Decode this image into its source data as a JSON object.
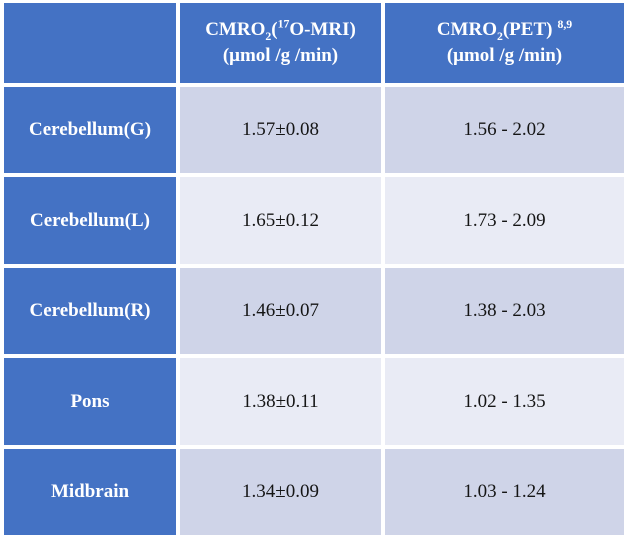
{
  "colors": {
    "header_blue": "#4472C4",
    "band_dark": "#CFD4E8",
    "band_light": "#E9EBF5",
    "grid_line": "#FFFFFF",
    "header_text": "#FFFFFF",
    "value_text": "#151515"
  },
  "table": {
    "header": {
      "region_label": "",
      "mri": {
        "base": "CMRO",
        "sub2": "2",
        "open_paren": "(",
        "sup_isotope": "17",
        "tail": "O-MRI)",
        "unit": "(μmol /g /min)"
      },
      "pet": {
        "base": "CMRO",
        "sub2": "2",
        "tail": "(PET)",
        "sup_refs": "8,9",
        "unit": "(μmol /g /min)"
      }
    },
    "rows": [
      {
        "region": "Cerebellum(G)",
        "mri": "1.57±0.08",
        "pet": "1.56 - 2.02"
      },
      {
        "region": "Cerebellum(L)",
        "mri": "1.65±0.12",
        "pet": "1.73 - 2.09"
      },
      {
        "region": "Cerebellum(R)",
        "mri": "1.46±0.07",
        "pet": "1.38 - 2.03"
      },
      {
        "region": "Pons",
        "mri": "1.38±0.11",
        "pet": "1.02 - 1.35"
      },
      {
        "region": "Midbrain",
        "mri": "1.34±0.09",
        "pet": "1.03 - 1.24"
      }
    ]
  },
  "chart_data": {
    "type": "table",
    "columns": [
      "",
      "CMRO2(17O-MRI) (μmol /g /min)",
      "CMRO2(PET) 8,9 (μmol /g /min)"
    ],
    "rows": [
      [
        "Cerebellum(G)",
        "1.57±0.08",
        "1.56 - 2.02"
      ],
      [
        "Cerebellum(L)",
        "1.65±0.12",
        "1.73 - 2.09"
      ],
      [
        "Cerebellum(R)",
        "1.46±0.07",
        "1.38 - 2.03"
      ],
      [
        "Pons",
        "1.38±0.11",
        "1.02 - 1.35"
      ],
      [
        "Midbrain",
        "1.34±0.09",
        "1.03 - 1.24"
      ]
    ]
  }
}
